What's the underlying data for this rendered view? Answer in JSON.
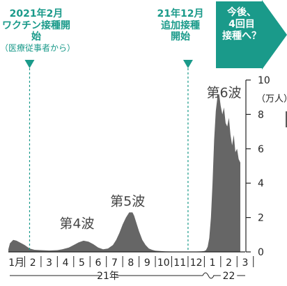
{
  "annotations": {
    "first": {
      "date": "2021年2月",
      "title": "ワクチン接種開始",
      "sub": "（医療従事者から）"
    },
    "second": {
      "date": "21年12月",
      "title": "追加接種",
      "title2": "開始"
    },
    "next": {
      "line1": "今後、",
      "line2": "4回目",
      "line3": "接種へ？"
    }
  },
  "colors": {
    "teal": "#1a9a8a",
    "area": "#666666",
    "axis": "#222222"
  },
  "chart_data": {
    "type": "area",
    "ylabel": "（万人）",
    "ylim": [
      0,
      10
    ],
    "yticks": [
      0,
      2,
      4,
      6,
      8,
      10
    ],
    "x_month_labels": [
      "1月",
      "2",
      "3",
      "4",
      "5",
      "6",
      "7",
      "8",
      "9",
      "10",
      "11",
      "12",
      "1",
      "2",
      "3"
    ],
    "year_labels": [
      "21年",
      "22"
    ],
    "x_note": "x = months since start of Jan 2021 (0 = Jan 1, 2021)",
    "wave_labels": [
      {
        "text": "第4波",
        "x": 4.2,
        "y": 1.4
      },
      {
        "text": "第5波",
        "x": 7.3,
        "y": 2.7
      },
      {
        "text": "第6波",
        "x": 13.2,
        "y": 9.0
      }
    ],
    "vlines": [
      {
        "x": 1.3
      },
      {
        "x": 11.0
      }
    ],
    "series": [
      {
        "x": [
          0,
          0.1,
          0.3,
          0.5,
          0.8,
          1.0,
          1.3,
          1.6,
          2.0,
          2.5,
          3.0,
          3.3,
          3.7,
          4.0,
          4.3,
          4.6,
          4.9,
          5.2,
          5.5,
          5.8,
          6.1,
          6.4,
          6.6,
          6.8,
          7.0,
          7.2,
          7.4,
          7.6,
          7.7,
          7.8,
          8.0,
          8.2,
          8.4,
          8.6,
          8.8,
          9.0,
          9.3,
          9.6,
          10.0,
          10.5,
          11.0,
          11.5,
          11.8,
          12.0,
          12.1,
          12.2,
          12.3,
          12.4,
          12.5,
          12.6,
          12.7,
          12.8,
          12.9,
          13.0,
          13.1,
          13.2,
          13.3,
          13.4,
          13.5,
          13.6,
          13.7,
          13.8,
          13.9,
          14.0,
          14.1,
          14.2
        ],
        "values": [
          0.15,
          0.5,
          0.7,
          0.65,
          0.5,
          0.4,
          0.2,
          0.12,
          0.1,
          0.08,
          0.1,
          0.15,
          0.25,
          0.4,
          0.55,
          0.65,
          0.6,
          0.45,
          0.25,
          0.15,
          0.2,
          0.4,
          0.7,
          1.1,
          1.6,
          2.0,
          2.3,
          2.3,
          2.1,
          1.8,
          1.2,
          0.7,
          0.4,
          0.2,
          0.12,
          0.07,
          0.05,
          0.03,
          0.02,
          0.01,
          0.01,
          0.02,
          0.03,
          0.05,
          0.1,
          0.3,
          0.8,
          2.0,
          4.0,
          6.5,
          8.2,
          9.0,
          9.2,
          8.5,
          8.0,
          8.4,
          7.5,
          7.3,
          7.8,
          6.8,
          6.2,
          6.8,
          5.8,
          6.0,
          5.4,
          5.2
        ]
      }
    ]
  }
}
